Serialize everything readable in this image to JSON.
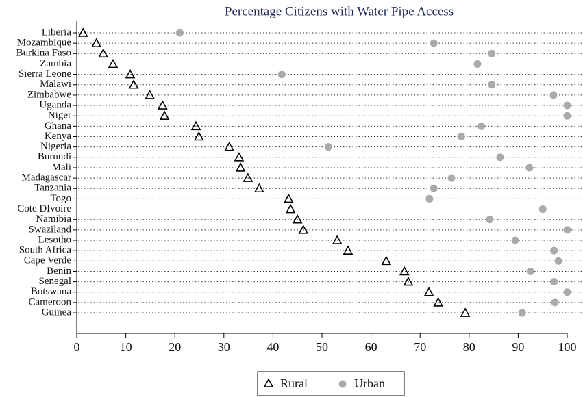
{
  "chart_data": {
    "type": "dot",
    "title": "Percentage Citizens with Water Pipe Access",
    "categories": [
      "Liberia",
      "Mozambique",
      "Burkina Faso",
      "Zambia",
      "Sierra Leone",
      "Malawi",
      "Zimbabwe",
      "Uganda",
      "Niger",
      "Ghana",
      "Kenya",
      "Nigeria",
      "Burundi",
      "Mali",
      "Madagascar",
      "Tanzania",
      "Togo",
      "Cote DIvoire",
      "Namibia",
      "Swaziland",
      "Lesotho",
      "South Africa",
      "Cape Verde",
      "Benin",
      "Senegal",
      "Botswana",
      "Cameroon",
      "Guinea"
    ],
    "series": [
      {
        "name": "Rural",
        "color": "#000000",
        "marker": "triangle",
        "values": [
          1.3,
          4,
          5.4,
          7.4,
          10.9,
          11.6,
          14.9,
          17.5,
          17.9,
          24.3,
          24.9,
          31.1,
          33.1,
          33.4,
          34.9,
          37.2,
          43.2,
          43.6,
          45,
          46.2,
          53.1,
          55.3,
          63.1,
          66.8,
          67.6,
          71.8,
          73.7,
          79.2
        ]
      },
      {
        "name": "Urban",
        "color": "#aaaaaa",
        "marker": "circle",
        "values": [
          21,
          72.8,
          84.6,
          81.7,
          41.8,
          84.6,
          97.2,
          100,
          100,
          82.5,
          78.4,
          51.3,
          86.3,
          92.3,
          76.4,
          72.8,
          71.9,
          95,
          84.2,
          100,
          89.4,
          97.3,
          98.2,
          92.5,
          97.3,
          100,
          97.5,
          90.8
        ]
      }
    ],
    "xlim": [
      0,
      100
    ],
    "xticks": [
      0,
      10,
      20,
      30,
      40,
      50,
      60,
      70,
      80,
      90,
      100
    ],
    "grid": true,
    "legend": "bottom"
  }
}
